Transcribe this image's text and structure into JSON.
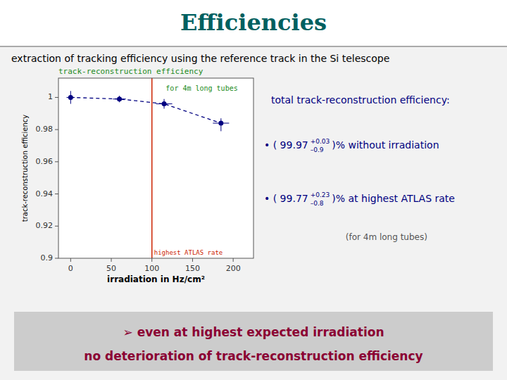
{
  "chart_data": {
    "type": "scatter",
    "title": "Efficiencies",
    "subtitle": "extraction of tracking efficiency using the reference track in the Si telescope",
    "plot_title": "track-reconstruction efficiency",
    "x_label": "irradiation in Hz/cm²",
    "y_label": "track-reconstruction efficiency",
    "series": [
      {
        "color": "#000080",
        "marker": "circle",
        "line_style": "dashed",
        "x": [
          0,
          60,
          115,
          185
        ],
        "values": [
          1.0,
          0.999,
          0.996,
          0.984
        ],
        "x_err": [
          5,
          8,
          10,
          10
        ],
        "y_err_up": [
          0.004,
          0.002,
          0.003,
          0.003
        ],
        "y_err_down": [
          0.004,
          0.002,
          0.003,
          0.005
        ]
      }
    ],
    "xlim": [
      -15,
      225
    ],
    "ylim": [
      0.9,
      1.012
    ],
    "xticks": [
      0,
      50,
      100,
      150,
      200
    ],
    "yticks": [
      0.9,
      0.92,
      0.94,
      0.96,
      0.98,
      1
    ],
    "grid": false,
    "reference_line": {
      "x": 100,
      "label": "highest ATLAS rate",
      "color": "#cc2200"
    },
    "annotation": {
      "text": "for 4m long tubes",
      "color": "#228B22"
    },
    "info_title": "total track-reconstruction efficiency:",
    "info_lines": [
      {
        "text": "•  ( 99.97",
        "sup": "+0.03",
        "sub": "–0.9",
        "after": ")% without irradiation"
      },
      {
        "text": "•  ( 99.77",
        "sup": "+0.23",
        "sub": "–0.8",
        "after": ")% at highest ATLAS rate"
      }
    ],
    "note": "(for 4m long tubes)",
    "footer": [
      "➢  even at highest expected irradiation",
      "no deterioration of track-reconstruction efficiency"
    ]
  }
}
